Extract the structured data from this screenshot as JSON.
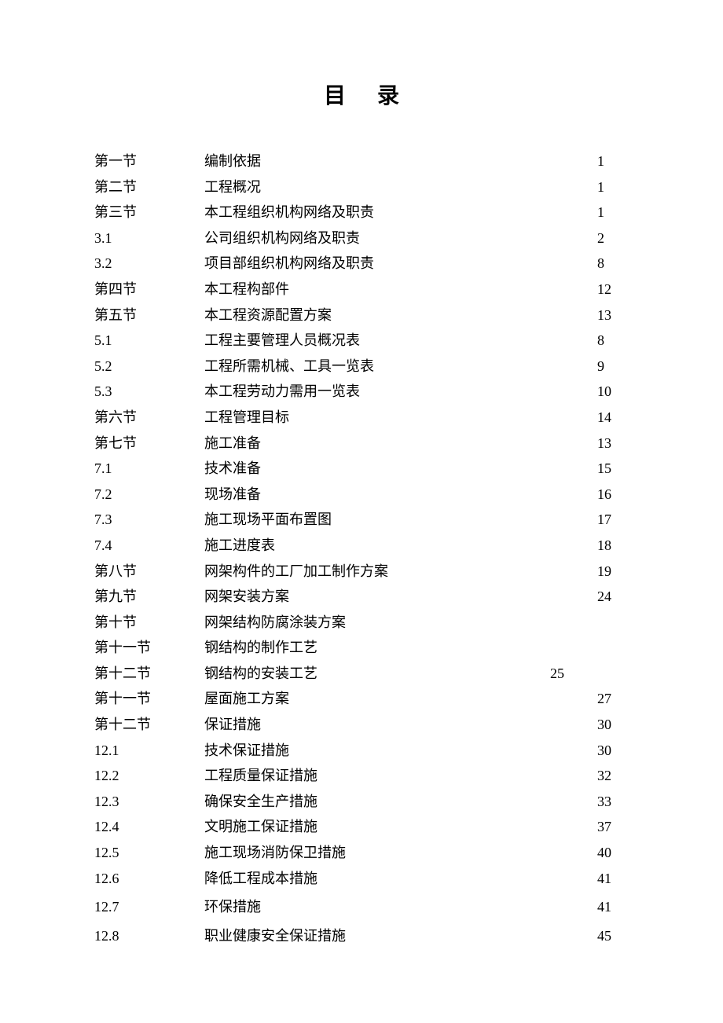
{
  "title": "目录",
  "toc": [
    {
      "section": "第一节",
      "name": "编制依据",
      "midpage": "",
      "page": "1"
    },
    {
      "section": "第二节",
      "name": "工程概况",
      "midpage": "",
      "page": "1"
    },
    {
      "section": "第三节",
      "name": "本工程组织机构网络及职责",
      "midpage": "",
      "page": "1"
    },
    {
      "section": "3.1",
      "name": "公司组织机构网络及职责",
      "midpage": "",
      "page": "2"
    },
    {
      "section": "3.2",
      "name": "项目部组织机构网络及职责",
      "midpage": "",
      "page": "8"
    },
    {
      "section": "第四节",
      "name": "本工程构部件",
      "midpage": "",
      "page": "12"
    },
    {
      "section": "第五节",
      "name": "本工程资源配置方案",
      "midpage": "",
      "page": "13"
    },
    {
      "section": "5.1",
      "name": "工程主要管理人员概况表",
      "midpage": "",
      "page": "8"
    },
    {
      "section": "5.2",
      "name": "工程所需机械、工具一览表",
      "midpage": "",
      "page": "9"
    },
    {
      "section": "5.3",
      "name": "本工程劳动力需用一览表",
      "midpage": "",
      "page": "10"
    },
    {
      "section": "第六节",
      "name": "工程管理目标",
      "midpage": "",
      "page": "14"
    },
    {
      "section": "第七节",
      "name": "施工准备",
      "midpage": "",
      "page": "13"
    },
    {
      "section": "7.1",
      "name": "技术准备",
      "midpage": "",
      "page": "15"
    },
    {
      "section": "7.2",
      "name": "现场准备",
      "midpage": "",
      "page": "16"
    },
    {
      "section": "7.3",
      "name": "施工现场平面布置图",
      "midpage": "",
      "page": "17"
    },
    {
      "section": "7.4",
      "name": "施工进度表",
      "midpage": "",
      "page": "18"
    },
    {
      "section": "第八节",
      "name": "网架构件的工厂加工制作方案",
      "midpage": "",
      "page": "19"
    },
    {
      "section": "第九节",
      "name": "网架安装方案",
      "midpage": "",
      "page": "24"
    },
    {
      "section": "第十节",
      "name": "网架结构防腐涂装方案",
      "midpage": "",
      "page": ""
    },
    {
      "section": "第十一节",
      "name": "钢结构的制作工艺",
      "midpage": "",
      "page": ""
    },
    {
      "section": "第十二节",
      "name": "钢结构的安装工艺",
      "midpage": "25",
      "page": ""
    },
    {
      "section": "第十一节",
      "name": "屋面施工方案",
      "midpage": "",
      "page": "27"
    },
    {
      "section": "第十二节",
      "name": "保证措施",
      "midpage": "",
      "page": "30"
    },
    {
      "section": "12.1",
      "name": "技术保证措施",
      "midpage": "",
      "page": "30"
    },
    {
      "section": "12.2",
      "name": "工程质量保证措施",
      "midpage": "",
      "page": "32"
    },
    {
      "section": "12.3",
      "name": "确保安全生产措施",
      "midpage": "",
      "page": "33"
    },
    {
      "section": "12.4",
      "name": "文明施工保证措施",
      "midpage": "",
      "page": "37"
    },
    {
      "section": "12.5",
      "name": "施工现场消防保卫措施",
      "midpage": "",
      "page": "40"
    },
    {
      "section": "12.6",
      "name": "降低工程成本措施",
      "midpage": "",
      "page": "41"
    },
    {
      "section": "12.7",
      "name": "环保措施",
      "midpage": "",
      "page": "41",
      "spaced": true
    },
    {
      "section": "12.8",
      "name": "职业健康安全保证措施",
      "midpage": "",
      "page": "45",
      "spaced": true
    }
  ]
}
